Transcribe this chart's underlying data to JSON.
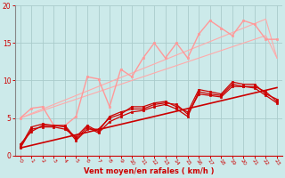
{
  "background_color": "#cceaea",
  "grid_color": "#aacccc",
  "xlabel": "Vent moyen/en rafales ( km/h )",
  "xlabel_color": "#cc0000",
  "tick_color": "#cc0000",
  "x_values": [
    0,
    1,
    2,
    3,
    4,
    5,
    6,
    7,
    8,
    9,
    10,
    11,
    12,
    13,
    14,
    15,
    16,
    17,
    18,
    19,
    20,
    21,
    22,
    23
  ],
  "series": [
    {
      "name": "pink_trend1",
      "color": "#ffaaaa",
      "linewidth": 0.8,
      "marker": null,
      "data": [
        5.0,
        5.5,
        6.0,
        6.5,
        7.0,
        7.5,
        8.0,
        8.5,
        9.0,
        9.5,
        10.0,
        10.5,
        11.0,
        11.5,
        12.0,
        12.5,
        13.0,
        13.5,
        14.0,
        14.5,
        15.0,
        15.5,
        16.0,
        13.0
      ]
    },
    {
      "name": "pink_trend2",
      "color": "#ffaaaa",
      "linewidth": 0.8,
      "marker": null,
      "data": [
        5.0,
        5.6,
        6.2,
        6.8,
        7.4,
        8.0,
        8.6,
        9.2,
        9.8,
        10.4,
        11.0,
        11.6,
        12.2,
        12.8,
        13.4,
        14.0,
        14.6,
        15.2,
        15.8,
        16.4,
        17.0,
        17.6,
        18.2,
        13.0
      ]
    },
    {
      "name": "pink_jagged",
      "color": "#ff9999",
      "linewidth": 1.0,
      "marker": "s",
      "markersize": 2.0,
      "data": [
        5.0,
        6.3,
        6.5,
        4.0,
        4.0,
        5.2,
        10.5,
        10.2,
        6.5,
        11.5,
        10.5,
        13.0,
        15.0,
        13.0,
        15.0,
        13.0,
        16.2,
        18.0,
        17.0,
        16.0,
        18.0,
        17.5,
        15.5,
        15.5
      ]
    },
    {
      "name": "dark_red_trend",
      "color": "#cc0000",
      "linewidth": 1.2,
      "marker": null,
      "data": [
        1.0,
        1.35,
        1.7,
        2.05,
        2.4,
        2.75,
        3.1,
        3.45,
        3.8,
        4.15,
        4.5,
        4.85,
        5.2,
        5.55,
        5.9,
        6.25,
        6.6,
        6.95,
        7.3,
        7.65,
        8.0,
        8.35,
        8.7,
        9.05
      ]
    },
    {
      "name": "dark_red1",
      "color": "#cc0000",
      "linewidth": 0.9,
      "marker": "s",
      "markersize": 1.8,
      "data": [
        1.5,
        3.2,
        4.0,
        4.0,
        4.0,
        2.2,
        3.8,
        3.0,
        4.5,
        5.2,
        5.8,
        6.0,
        6.5,
        6.8,
        6.2,
        5.2,
        8.5,
        8.2,
        8.0,
        9.5,
        9.2,
        9.2,
        8.5,
        7.2
      ]
    },
    {
      "name": "dark_red2",
      "color": "#cc0000",
      "linewidth": 0.9,
      "marker": "s",
      "markersize": 1.8,
      "data": [
        1.2,
        3.8,
        4.2,
        4.0,
        3.8,
        2.0,
        3.5,
        3.5,
        5.0,
        5.5,
        6.5,
        6.5,
        7.0,
        7.2,
        6.5,
        5.8,
        8.8,
        8.5,
        8.2,
        9.8,
        9.5,
        9.5,
        8.2,
        7.5
      ]
    },
    {
      "name": "dark_red3",
      "color": "#cc0000",
      "linewidth": 0.9,
      "marker": "s",
      "markersize": 1.8,
      "data": [
        1.0,
        3.5,
        3.8,
        3.8,
        3.5,
        2.5,
        4.0,
        3.2,
        5.2,
        5.8,
        6.2,
        6.2,
        6.8,
        7.0,
        6.8,
        5.5,
        8.2,
        8.0,
        7.8,
        9.2,
        9.2,
        9.0,
        8.0,
        7.0
      ]
    }
  ],
  "ylim": [
    0,
    20
  ],
  "yticks": [
    0,
    5,
    10,
    15,
    20
  ],
  "xlim": [
    -0.5,
    23.5
  ],
  "xticks": [
    0,
    1,
    2,
    3,
    4,
    5,
    6,
    7,
    8,
    9,
    10,
    11,
    12,
    13,
    14,
    15,
    16,
    17,
    18,
    19,
    20,
    21,
    22,
    23
  ]
}
